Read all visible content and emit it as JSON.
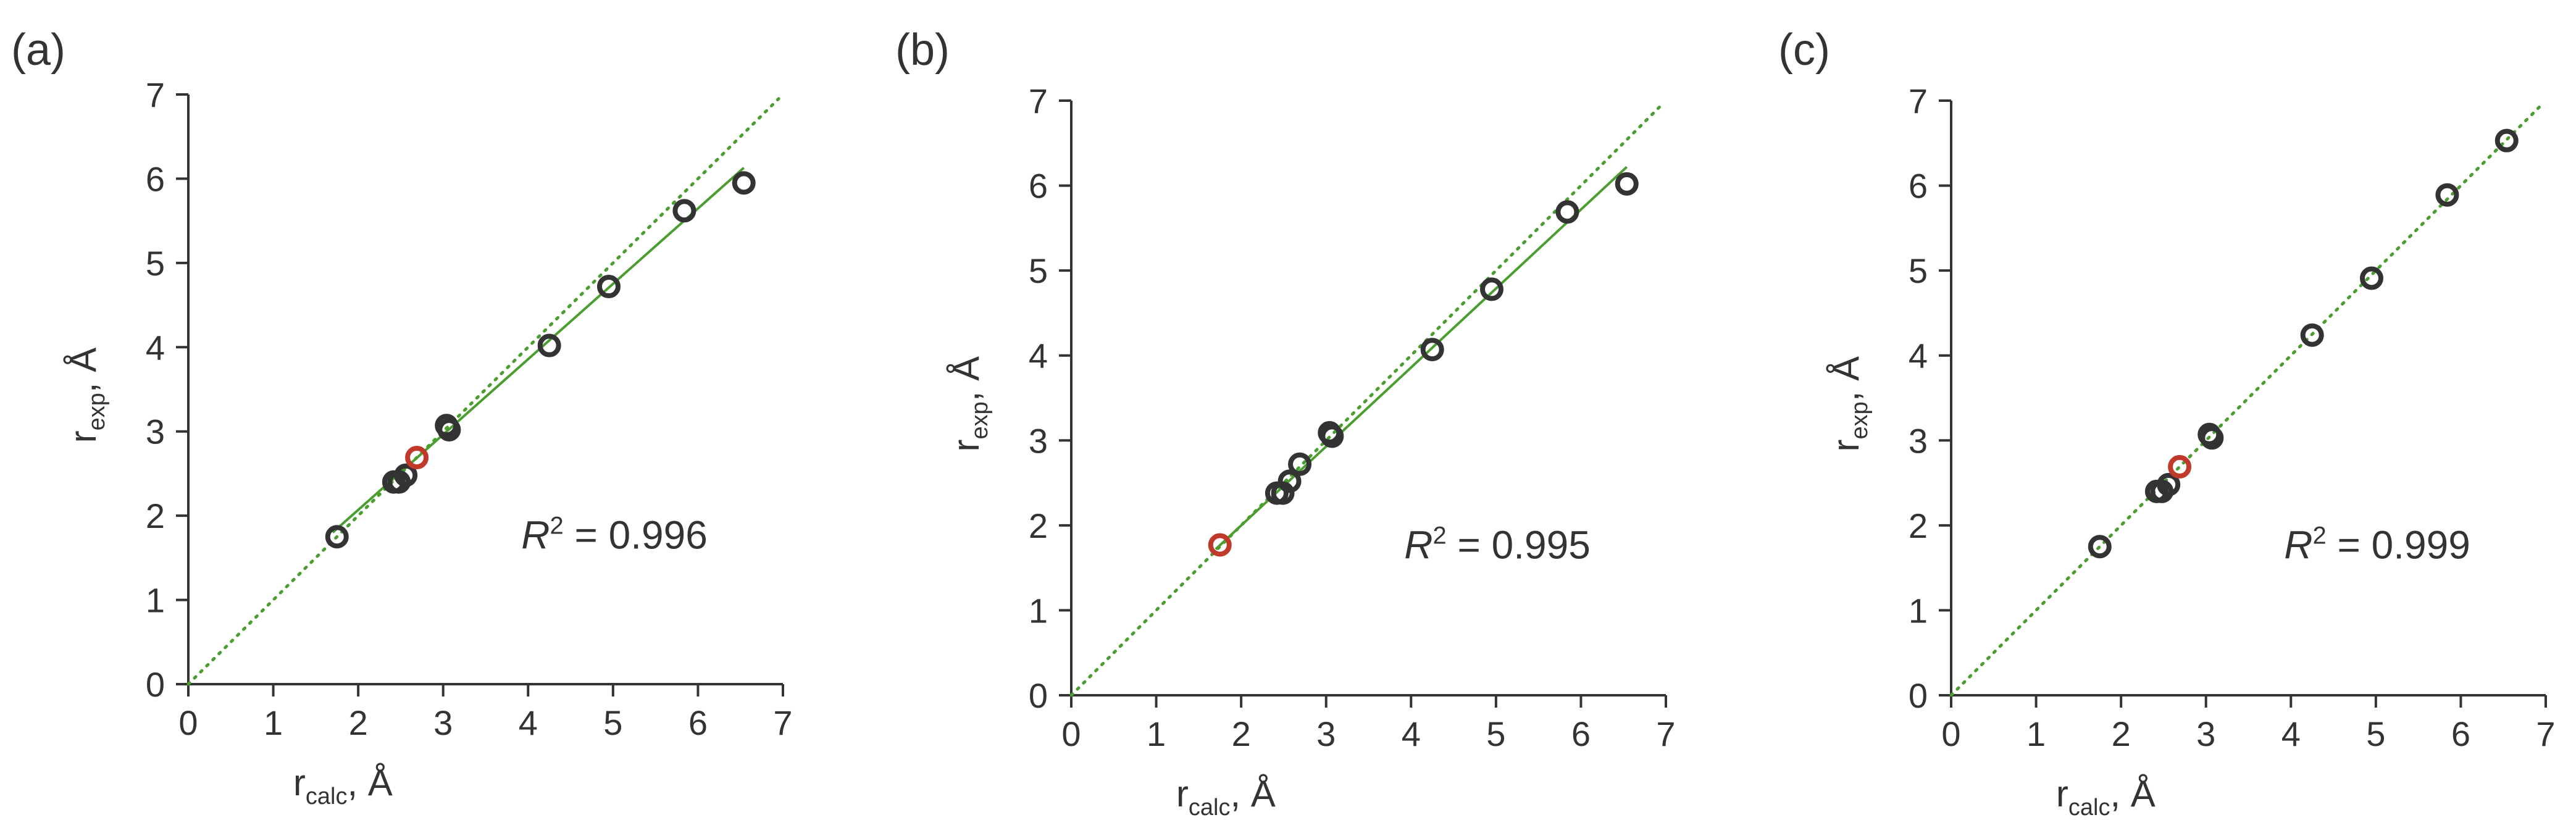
{
  "axis_labels": {
    "x": {
      "main": "r",
      "sub": "calc",
      "suffix": ", Å"
    },
    "y": {
      "main": "r",
      "sub": "exp",
      "suffix": ", Å"
    }
  },
  "colors": {
    "point": "#333333",
    "highlight": "#c0392b",
    "fit_line": "#4a9e2f",
    "identity_line": "#4a9e2f",
    "axis": "#333333"
  },
  "chart_data": [
    {
      "type": "scatter",
      "panel_label": "(a)",
      "r2_text": {
        "var": "R",
        "sup": "2",
        "rest": " = 0.996"
      },
      "xlim": [
        0,
        7
      ],
      "ylim": [
        0,
        7
      ],
      "xticks": [
        0,
        1,
        2,
        3,
        4,
        5,
        6,
        7
      ],
      "yticks": [
        0,
        1,
        2,
        3,
        4,
        5,
        6,
        7
      ],
      "points": [
        {
          "x": 1.75,
          "y": 1.75
        },
        {
          "x": 2.42,
          "y": 2.4
        },
        {
          "x": 2.48,
          "y": 2.4
        },
        {
          "x": 2.56,
          "y": 2.48
        },
        {
          "x": 3.04,
          "y": 3.07
        },
        {
          "x": 3.07,
          "y": 3.02
        },
        {
          "x": 4.25,
          "y": 4.02
        },
        {
          "x": 4.95,
          "y": 4.72
        },
        {
          "x": 5.84,
          "y": 5.62
        },
        {
          "x": 6.54,
          "y": 5.95
        }
      ],
      "highlight_points": [
        {
          "x": 2.69,
          "y": 2.69
        }
      ],
      "fit_line": [
        {
          "x": 1.7,
          "y": 1.8
        },
        {
          "x": 6.54,
          "y": 6.13
        }
      ],
      "identity_line": [
        {
          "x": 0,
          "y": 0
        },
        {
          "x": 6.95,
          "y": 6.95
        }
      ]
    },
    {
      "type": "scatter",
      "panel_label": "(b)",
      "r2_text": {
        "var": "R",
        "sup": "2",
        "rest": " = 0.995"
      },
      "xlim": [
        0,
        7
      ],
      "ylim": [
        0,
        7
      ],
      "xticks": [
        0,
        1,
        2,
        3,
        4,
        5,
        6,
        7
      ],
      "yticks": [
        0,
        1,
        2,
        3,
        4,
        5,
        6,
        7
      ],
      "points": [
        {
          "x": 2.42,
          "y": 2.38
        },
        {
          "x": 2.49,
          "y": 2.38
        },
        {
          "x": 2.57,
          "y": 2.52
        },
        {
          "x": 2.69,
          "y": 2.72
        },
        {
          "x": 3.04,
          "y": 3.09
        },
        {
          "x": 3.07,
          "y": 3.05
        },
        {
          "x": 4.25,
          "y": 4.07
        },
        {
          "x": 4.95,
          "y": 4.78
        },
        {
          "x": 5.84,
          "y": 5.69
        },
        {
          "x": 6.54,
          "y": 6.02
        }
      ],
      "highlight_points": [
        {
          "x": 1.75,
          "y": 1.77
        }
      ],
      "fit_line": [
        {
          "x": 1.7,
          "y": 1.72
        },
        {
          "x": 6.54,
          "y": 6.22
        }
      ],
      "identity_line": [
        {
          "x": 0,
          "y": 0
        },
        {
          "x": 6.95,
          "y": 6.95
        }
      ]
    },
    {
      "type": "scatter",
      "panel_label": "(c)",
      "r2_text": {
        "var": "R",
        "sup": "2",
        "rest": " = 0.999"
      },
      "xlim": [
        0,
        7
      ],
      "ylim": [
        0,
        7
      ],
      "xticks": [
        0,
        1,
        2,
        3,
        4,
        5,
        6,
        7
      ],
      "yticks": [
        0,
        1,
        2,
        3,
        4,
        5,
        6,
        7
      ],
      "points": [
        {
          "x": 1.75,
          "y": 1.75
        },
        {
          "x": 2.42,
          "y": 2.4
        },
        {
          "x": 2.48,
          "y": 2.4
        },
        {
          "x": 2.56,
          "y": 2.48
        },
        {
          "x": 3.04,
          "y": 3.07
        },
        {
          "x": 3.07,
          "y": 3.03
        },
        {
          "x": 4.25,
          "y": 4.24
        },
        {
          "x": 4.95,
          "y": 4.91
        },
        {
          "x": 5.84,
          "y": 5.89
        },
        {
          "x": 6.54,
          "y": 6.53
        }
      ],
      "highlight_points": [
        {
          "x": 2.69,
          "y": 2.69
        }
      ],
      "fit_line": [],
      "identity_line": [
        {
          "x": 0,
          "y": 0
        },
        {
          "x": 6.95,
          "y": 6.95
        }
      ]
    }
  ]
}
